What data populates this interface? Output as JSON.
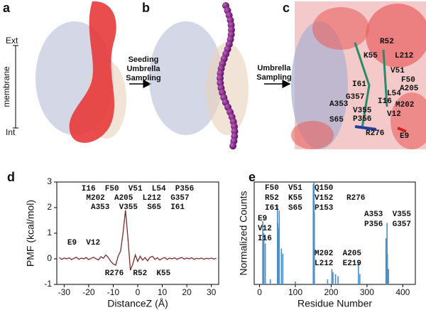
{
  "figure": {
    "panel_labels": [
      "a",
      "b",
      "c",
      "d",
      "e"
    ],
    "membrane_scale": {
      "top": "Ext",
      "label": "membrane",
      "bottom": "Int"
    },
    "arrow_labels": [
      [
        "Seeding",
        "Umbrella",
        "Sampling"
      ],
      [
        "Umbrella",
        "Sampling"
      ]
    ],
    "residues_c": [
      "R52",
      "K55",
      "L212",
      "V51",
      "I61",
      "F50",
      "A205",
      "G357",
      "L54",
      "I16",
      "A353",
      "M202",
      "V355",
      "P356",
      "V12",
      "S65",
      "R276",
      "E9"
    ]
  },
  "chart_data": [
    {
      "type": "line",
      "xlabel": "DistanceZ (Å)",
      "ylabel": "PMF (kcal/mol)",
      "color": "#7a2a2a",
      "x": [
        -32,
        -31,
        -30,
        -29,
        -28,
        -27,
        -26,
        -25,
        -24,
        -23,
        -22,
        -21,
        -20,
        -19,
        -18,
        -17,
        -16,
        -15,
        -14,
        -13,
        -12,
        -11,
        -10,
        -9,
        -8,
        -7,
        -6,
        -5,
        -4,
        -3,
        -2,
        -1,
        0,
        1,
        2,
        3,
        4,
        5,
        6,
        7,
        8,
        9,
        10,
        11,
        12,
        13,
        14,
        15,
        16,
        17,
        18,
        19,
        20,
        21,
        22,
        23,
        24,
        25,
        26,
        27,
        28,
        29,
        30,
        31,
        32
      ],
      "values": [
        0.05,
        -0.02,
        0.03,
        0.0,
        0.04,
        -0.03,
        0.02,
        0.06,
        -0.02,
        0.03,
        0.0,
        0.05,
        -0.03,
        0.02,
        0.06,
        0.0,
        -0.04,
        0.08,
        0.02,
        0.15,
        0.05,
        -0.1,
        -0.2,
        -0.25,
        0.1,
        0.3,
        1.0,
        1.9,
        0.8,
        -0.45,
        -0.2,
        0.15,
        -0.1,
        0.1,
        -0.05,
        0.05,
        -0.08,
        0.06,
        0.1,
        -0.02,
        0.04,
        -0.05,
        0.02,
        0.05,
        -0.03,
        0.03,
        0.0,
        0.04,
        -0.02,
        0.02,
        0.05,
        -0.01,
        0.03,
        0.0,
        0.04,
        -0.02,
        0.02,
        0.0,
        0.03,
        -0.02,
        0.02,
        0.0,
        0.03,
        -0.01,
        0.02
      ],
      "xlim": [
        -33,
        33
      ],
      "xticks": [
        -30,
        -20,
        -10,
        0,
        10,
        20,
        30
      ],
      "ylim": [
        -1,
        3
      ],
      "yticks": [
        -1,
        0,
        1,
        2,
        3
      ],
      "annotations": [
        "I16  F50  V51  L54  P356",
        "M202  A205  L212  G357",
        "A353  V355  S65  I61",
        "E9  V12",
        "R276  R52  K55"
      ]
    },
    {
      "type": "bar",
      "xlabel": "Residue Number",
      "ylabel": "Normalized Counts",
      "color": "#4a90c8",
      "x": [
        9,
        12,
        16,
        30,
        50,
        51,
        52,
        55,
        61,
        65,
        100,
        150,
        152,
        153,
        190,
        202,
        205,
        212,
        219,
        276,
        280,
        353,
        355,
        356,
        357,
        360
      ],
      "values": [
        0.62,
        0.5,
        0.4,
        0.05,
        0.78,
        0.6,
        0.55,
        0.72,
        0.35,
        0.3,
        0.03,
        0.98,
        1.0,
        0.7,
        0.05,
        0.15,
        0.12,
        0.1,
        0.08,
        0.22,
        0.1,
        0.45,
        0.3,
        0.6,
        0.3,
        0.15
      ],
      "xlim": [
        -15,
        435
      ],
      "xticks": [
        0,
        100,
        200,
        300,
        400
      ],
      "ylim": [
        0,
        1
      ],
      "annotations": [
        "F50  V51",
        "R52  K55",
        "I61  S65",
        "Q150",
        "V152",
        "P153",
        "E9",
        "V12",
        "I16",
        "R276",
        "A353  V355",
        "P356  G357",
        "M202  A205",
        "L212  E219"
      ]
    }
  ]
}
